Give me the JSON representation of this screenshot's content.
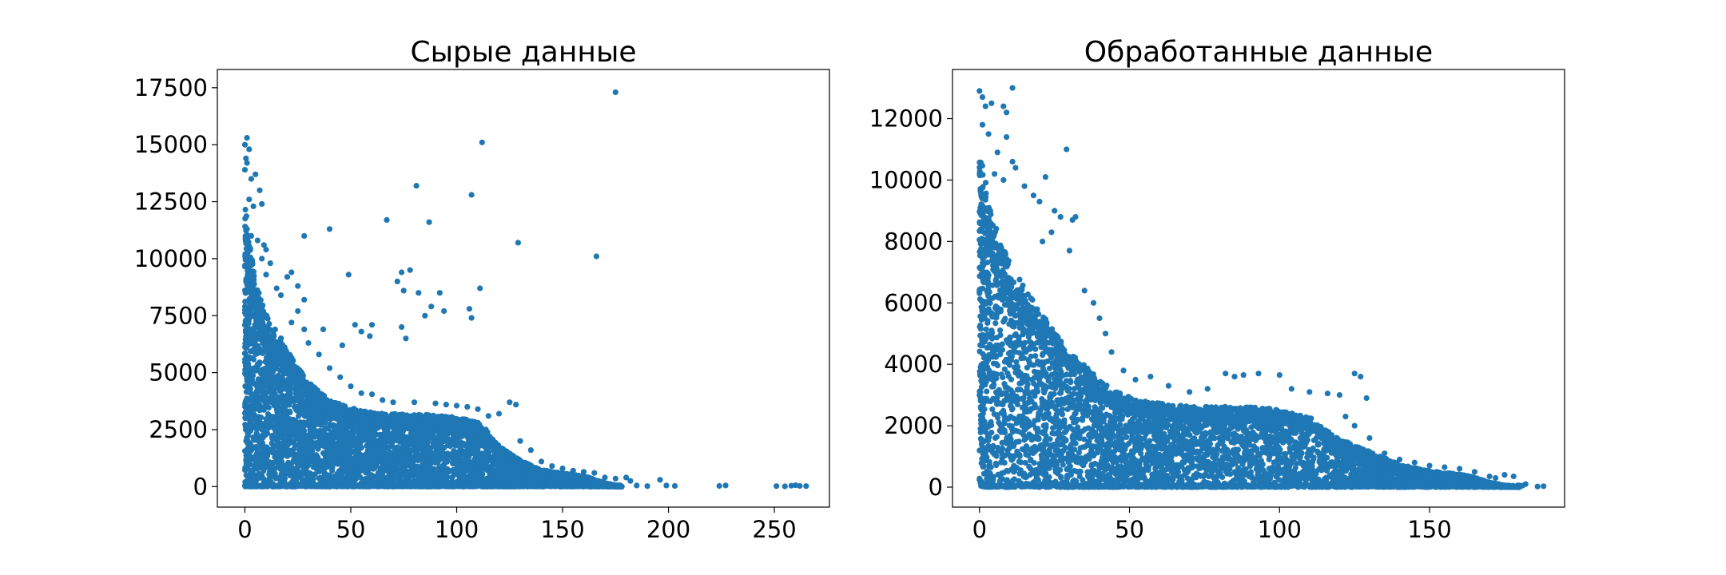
{
  "colors": {
    "marker": "#1f77b4",
    "axes": "#000000",
    "background": "#ffffff"
  },
  "chart_data": [
    {
      "type": "scatter",
      "title": "Сырые данные",
      "xlabel": "",
      "ylabel": "",
      "xlim": [
        -13,
        276
      ],
      "ylim": [
        -900,
        18300
      ],
      "xticks": [
        0,
        50,
        100,
        150,
        200,
        250
      ],
      "xtick_labels": [
        "0",
        "50",
        "100",
        "150",
        "200",
        "250"
      ],
      "yticks": [
        0,
        2500,
        5000,
        7500,
        10000,
        12500,
        15000,
        17500
      ],
      "ytick_labels": [
        "0",
        "2500",
        "5000",
        "7500",
        "10000",
        "12500",
        "15000",
        "17500"
      ],
      "grid": false,
      "series": [
        {
          "color": "#1f77b4",
          "envelope": [
            [
              0,
              11800
            ],
            [
              2,
              10500
            ],
            [
              5,
              8600
            ],
            [
              10,
              7200
            ],
            [
              15,
              6500
            ],
            [
              20,
              5800
            ],
            [
              25,
              5000
            ],
            [
              30,
              4400
            ],
            [
              35,
              4000
            ],
            [
              40,
              3600
            ],
            [
              50,
              3300
            ],
            [
              60,
              3100
            ],
            [
              70,
              3050
            ],
            [
              80,
              3000
            ],
            [
              90,
              3000
            ],
            [
              100,
              2900
            ],
            [
              110,
              2700
            ],
            [
              115,
              2300
            ],
            [
              120,
              1700
            ],
            [
              130,
              1100
            ],
            [
              140,
              700
            ],
            [
              150,
              550
            ],
            [
              160,
              450
            ],
            [
              165,
              300
            ],
            [
              170,
              150
            ],
            [
              175,
              50
            ],
            [
              178,
              0
            ]
          ],
          "points": [
            [
              1,
              15300
            ],
            [
              0,
              15000
            ],
            [
              2,
              14800
            ],
            [
              0.5,
              14400
            ],
            [
              1,
              14200
            ],
            [
              0,
              13900
            ],
            [
              3,
              13500
            ],
            [
              5,
              13700
            ],
            [
              7,
              13000
            ],
            [
              4,
              12300
            ],
            [
              2,
              12600
            ],
            [
              8,
              12400
            ],
            [
              1,
              11300
            ],
            [
              3,
              11000
            ],
            [
              6,
              10800
            ],
            [
              9,
              10600
            ],
            [
              10,
              10400
            ],
            [
              8,
              10000
            ],
            [
              12,
              9800
            ],
            [
              10,
              9300
            ],
            [
              22,
              9400
            ],
            [
              20,
              9200
            ],
            [
              15,
              8700
            ],
            [
              25,
              8800
            ],
            [
              28,
              8200
            ],
            [
              17,
              8400
            ],
            [
              25,
              7700
            ],
            [
              22,
              7200
            ],
            [
              28,
              6900
            ],
            [
              37,
              6900
            ],
            [
              30,
              6300
            ],
            [
              35,
              5800
            ],
            [
              40,
              5200
            ],
            [
              45,
              4800
            ],
            [
              50,
              4400
            ],
            [
              55,
              4100
            ],
            [
              60,
              4050
            ],
            [
              65,
              3800
            ],
            [
              70,
              3700
            ],
            [
              80,
              3700
            ],
            [
              90,
              3650
            ],
            [
              95,
              3600
            ],
            [
              100,
              3550
            ],
            [
              105,
              3500
            ],
            [
              110,
              3400
            ],
            [
              120,
              3200
            ],
            [
              125,
              3700
            ],
            [
              128,
              3600
            ],
            [
              115,
              3100
            ],
            [
              130,
              2000
            ],
            [
              135,
              1600
            ],
            [
              140,
              1100
            ],
            [
              145,
              900
            ],
            [
              150,
              800
            ],
            [
              155,
              700
            ],
            [
              160,
              650
            ],
            [
              165,
              600
            ],
            [
              170,
              400
            ],
            [
              175,
              350
            ],
            [
              180,
              400
            ],
            [
              182,
              250
            ],
            [
              185,
              50
            ],
            [
              190,
              20
            ],
            [
              196,
              300
            ],
            [
              199,
              50
            ],
            [
              203,
              30
            ],
            [
              224,
              30
            ],
            [
              227,
              50
            ],
            [
              251,
              20
            ],
            [
              255,
              10
            ],
            [
              258,
              40
            ],
            [
              260,
              60
            ],
            [
              262,
              30
            ],
            [
              265,
              20
            ],
            [
              28,
              11000
            ],
            [
              40,
              11300
            ],
            [
              67,
              11700
            ],
            [
              81,
              13200
            ],
            [
              107,
              12800
            ],
            [
              112,
              15100
            ],
            [
              87,
              11600
            ],
            [
              129,
              10700
            ],
            [
              166,
              10100
            ],
            [
              175,
              17300
            ],
            [
              49,
              9300
            ],
            [
              74,
              9400
            ],
            [
              78,
              9500
            ],
            [
              72,
              9000
            ],
            [
              75,
              8600
            ],
            [
              82,
              8500
            ],
            [
              92,
              8500
            ],
            [
              111,
              8700
            ],
            [
              106,
              7800
            ],
            [
              88,
              7900
            ],
            [
              94,
              7700
            ],
            [
              85,
              7500
            ],
            [
              107,
              7400
            ],
            [
              74,
              7000
            ],
            [
              60,
              7100
            ],
            [
              59,
              6600
            ],
            [
              52,
              7100
            ],
            [
              55,
              6800
            ],
            [
              46,
              6200
            ],
            [
              76,
              6500
            ]
          ]
        }
      ]
    },
    {
      "type": "scatter",
      "title": "Обработанные данные",
      "xlabel": "",
      "ylabel": "",
      "xlim": [
        -9,
        195
      ],
      "ylim": [
        -650,
        13600
      ],
      "xticks": [
        0,
        50,
        100,
        150
      ],
      "xtick_labels": [
        "0",
        "50",
        "100",
        "150"
      ],
      "yticks": [
        0,
        2000,
        4000,
        6000,
        8000,
        10000,
        12000
      ],
      "ytick_labels": [
        "0",
        "2000",
        "4000",
        "6000",
        "8000",
        "10000",
        "12000"
      ],
      "grid": false,
      "series": [
        {
          "color": "#1f77b4",
          "envelope": [
            [
              0,
              10500
            ],
            [
              2,
              9500
            ],
            [
              5,
              8200
            ],
            [
              10,
              7000
            ],
            [
              15,
              6200
            ],
            [
              20,
              5500
            ],
            [
              25,
              4800
            ],
            [
              30,
              4200
            ],
            [
              35,
              3800
            ],
            [
              40,
              3300
            ],
            [
              45,
              3000
            ],
            [
              50,
              2800
            ],
            [
              60,
              2600
            ],
            [
              70,
              2500
            ],
            [
              80,
              2500
            ],
            [
              90,
              2500
            ],
            [
              100,
              2400
            ],
            [
              110,
              2200
            ],
            [
              115,
              1800
            ],
            [
              120,
              1500
            ],
            [
              130,
              1100
            ],
            [
              140,
              700
            ],
            [
              150,
              500
            ],
            [
              160,
              400
            ],
            [
              165,
              300
            ],
            [
              170,
              150
            ],
            [
              175,
              50
            ],
            [
              180,
              0
            ]
          ],
          "points": [
            [
              0,
              12900
            ],
            [
              1,
              12700
            ],
            [
              2,
              12400
            ],
            [
              4,
              12500
            ],
            [
              11,
              13000
            ],
            [
              8,
              12400
            ],
            [
              9,
              12200
            ],
            [
              1,
              11800
            ],
            [
              3,
              11500
            ],
            [
              9,
              11400
            ],
            [
              29,
              11000
            ],
            [
              6,
              10900
            ],
            [
              11,
              10600
            ],
            [
              12,
              10400
            ],
            [
              5,
              10200
            ],
            [
              8,
              10000
            ],
            [
              22,
              10100
            ],
            [
              15,
              9800
            ],
            [
              18,
              9500
            ],
            [
              20,
              9300
            ],
            [
              25,
              9000
            ],
            [
              27,
              8800
            ],
            [
              31,
              8700
            ],
            [
              32,
              8800
            ],
            [
              24,
              8300
            ],
            [
              21,
              8000
            ],
            [
              30,
              7700
            ],
            [
              35,
              6400
            ],
            [
              38,
              6000
            ],
            [
              40,
              5500
            ],
            [
              42,
              5000
            ],
            [
              44,
              4400
            ],
            [
              48,
              3800
            ],
            [
              52,
              3500
            ],
            [
              57,
              3600
            ],
            [
              63,
              3300
            ],
            [
              70,
              3100
            ],
            [
              76,
              3200
            ],
            [
              82,
              3700
            ],
            [
              85,
              3600
            ],
            [
              88,
              3650
            ],
            [
              93,
              3700
            ],
            [
              100,
              3650
            ],
            [
              104,
              3200
            ],
            [
              110,
              3100
            ],
            [
              116,
              3050
            ],
            [
              120,
              3000
            ],
            [
              125,
              3700
            ],
            [
              127,
              3600
            ],
            [
              129,
              2900
            ],
            [
              122,
              2300
            ],
            [
              125,
              2000
            ],
            [
              130,
              1600
            ],
            [
              135,
              1100
            ],
            [
              140,
              900
            ],
            [
              145,
              800
            ],
            [
              150,
              700
            ],
            [
              155,
              650
            ],
            [
              160,
              600
            ],
            [
              165,
              500
            ],
            [
              170,
              350
            ],
            [
              172,
              300
            ],
            [
              175,
              400
            ],
            [
              178,
              350
            ],
            [
              182,
              100
            ],
            [
              186,
              20
            ],
            [
              188,
              30
            ],
            [
              181,
              50
            ]
          ]
        }
      ]
    }
  ]
}
